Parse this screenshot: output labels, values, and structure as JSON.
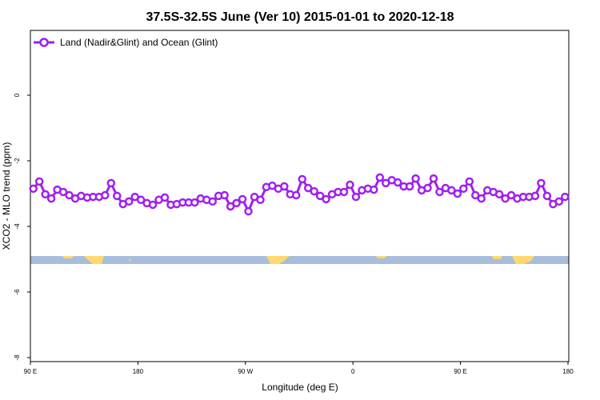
{
  "chart_data": {
    "type": "line",
    "title": "37.5S-32.5S June (Ver 10)   2015-01-01 to 2020-12-18",
    "xlabel": "Longitude (deg E)",
    "ylabel": "XCO2 - MLO trend (ppm)",
    "xlim": [
      90,
      540
    ],
    "ylim": [
      -8.2,
      2
    ],
    "x_ticks": [
      90,
      180,
      270,
      360,
      450,
      540
    ],
    "x_tick_labels": [
      "90 E",
      "180",
      "90 W",
      "0",
      "90 E",
      "180"
    ],
    "y_ticks": [
      0,
      -2,
      -4,
      -6,
      -8
    ],
    "y_tick_labels": [
      "0",
      "-2",
      "-4",
      "-6",
      "-8"
    ],
    "legend_position": "top-left",
    "series": [
      {
        "name": "Land (Nadir&Glint) and Ocean (Glint)",
        "color": "#a020f0",
        "x_start": 92.5,
        "x_step": 5,
        "values": [
          -2.85,
          -2.63,
          -3.02,
          -3.15,
          -2.88,
          -2.95,
          -3.05,
          -3.15,
          -3.07,
          -3.12,
          -3.1,
          -3.1,
          -3.05,
          -2.68,
          -3.07,
          -3.32,
          -3.24,
          -3.1,
          -3.19,
          -3.29,
          -3.34,
          -3.19,
          -3.12,
          -3.34,
          -3.32,
          -3.27,
          -3.27,
          -3.27,
          -3.15,
          -3.19,
          -3.24,
          -3.07,
          -3.05,
          -3.39,
          -3.29,
          -3.17,
          -3.54,
          -3.1,
          -3.19,
          -2.8,
          -2.76,
          -2.85,
          -2.78,
          -3.02,
          -3.05,
          -2.56,
          -2.83,
          -2.93,
          -3.07,
          -3.17,
          -3.02,
          -2.95,
          -2.95,
          -2.73,
          -3.1,
          -2.9,
          -2.85,
          -2.88,
          -2.51,
          -2.68,
          -2.59,
          -2.66,
          -2.78,
          -2.78,
          -2.54,
          -2.9,
          -2.83,
          -2.54,
          -2.95,
          -2.83,
          -2.9,
          -3.0,
          -2.85,
          -2.63,
          -3.05,
          -3.15,
          -2.9,
          -2.95,
          -3.02,
          -3.15,
          -3.05,
          -3.15,
          -3.1,
          -3.1,
          -3.07,
          -2.68,
          -3.07,
          -3.32,
          -3.24,
          -3.1
        ]
      }
    ],
    "map_strip": {
      "ocean_color": "#a7bddb",
      "land_color": "#ffd96e"
    }
  }
}
